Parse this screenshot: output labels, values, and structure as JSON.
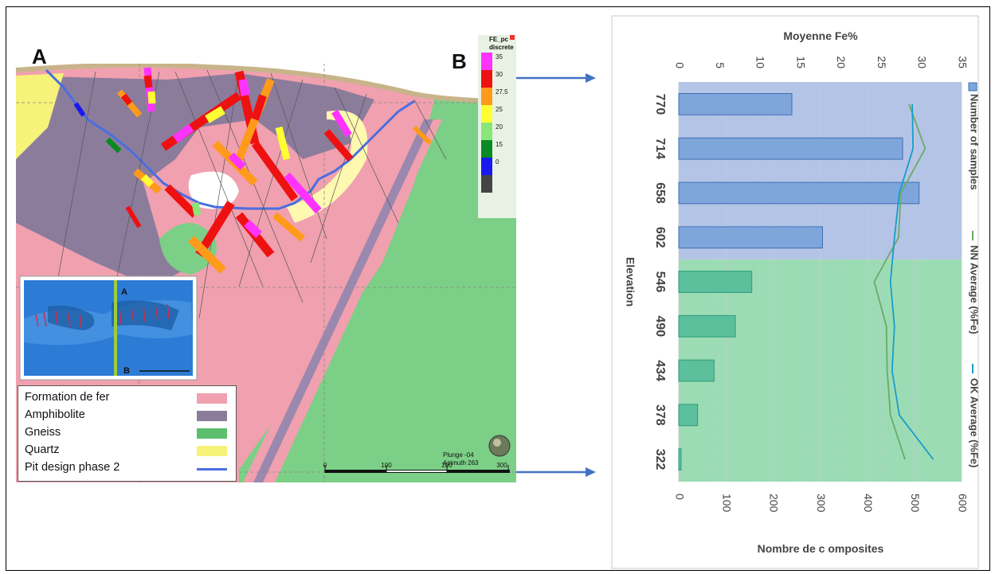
{
  "figure": {
    "label_a": "A",
    "label_b": "B"
  },
  "section_legend": {
    "items": [
      {
        "label": "Formation de fer",
        "color": "#f0a0ae",
        "kind": "swatch"
      },
      {
        "label": "Amphibolite",
        "color": "#8c7c9c",
        "kind": "swatch"
      },
      {
        "label": "Gneiss",
        "color": "#5bbf6e",
        "kind": "swatch"
      },
      {
        "label": "Quartz",
        "color": "#f7f27a",
        "kind": "swatch"
      },
      {
        "label": "Pit design phase 2",
        "color": "#4a6ee0",
        "kind": "line"
      }
    ]
  },
  "grade_legend": {
    "title_line1": "FE_pc",
    "title_line2": "discrete",
    "bins": [
      {
        "label": "35",
        "color": "#ff33ff"
      },
      {
        "label": "30",
        "color": "#ee1111"
      },
      {
        "label": "27.5",
        "color": "#ff9a1a"
      },
      {
        "label": "25",
        "color": "#ffff33"
      },
      {
        "label": "20",
        "color": "#88e67a"
      },
      {
        "label": "15",
        "color": "#0a8a22"
      },
      {
        "label": "0",
        "color": "#1919ee"
      },
      {
        "label": "",
        "color": "#444444"
      }
    ]
  },
  "orientation": {
    "plunge": "Plunge -04",
    "azimuth": "Azimuth 263"
  },
  "scale_bar": {
    "ticks": [
      "0",
      "100",
      "200",
      "300"
    ]
  },
  "inset": {
    "label_a": "A",
    "label_b": "B"
  },
  "chart_data": {
    "type": "bar",
    "orientation": "rotated",
    "categories": [
      "770",
      "714",
      "658",
      "602",
      "546",
      "490",
      "434",
      "378",
      "322"
    ],
    "xlabel": "Elevation",
    "y_primary_label": "Nombre de c omposites",
    "y_primary_ticks": [
      "0",
      "100",
      "200",
      "300",
      "400",
      "500",
      "600"
    ],
    "y_primary_range": [
      0,
      600
    ],
    "y_secondary_label": "Moyenne Fe%",
    "y_secondary_ticks": [
      "0",
      "5",
      "10",
      "15",
      "20",
      "25",
      "30",
      "35"
    ],
    "y_secondary_range": [
      0,
      35
    ],
    "series": [
      {
        "name": "Number of samples",
        "type": "bar",
        "axis": "primary",
        "values": [
          240,
          475,
          510,
          305,
          155,
          120,
          75,
          40,
          5
        ]
      },
      {
        "name": "NN Average (%Fe)",
        "type": "line",
        "axis": "secondary",
        "color": "#6aaa6a",
        "values": [
          28.5,
          30.5,
          27.5,
          27.2,
          24.2,
          25.7,
          25.8,
          26.2,
          28.0
        ]
      },
      {
        "name": "OK Average (%Fe)",
        "type": "line",
        "axis": "secondary",
        "color": "#1a9cc8",
        "values": [
          28.9,
          29.0,
          27.3,
          26.7,
          26.2,
          26.7,
          26.4,
          27.3,
          31.5
        ]
      }
    ],
    "background_bands": [
      {
        "color": "#b4c4e6",
        "from_category": "770",
        "to_category": "602"
      },
      {
        "color": "#9cdcb4",
        "from_category": "546",
        "to_category": "322"
      }
    ],
    "grid": true,
    "legend_position": "right"
  }
}
